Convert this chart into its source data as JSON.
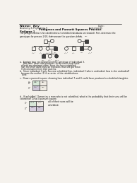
{
  "bg_color": "#f0ece4",
  "paper_color": "#f5f2ed",
  "title": "Pedigrees and Punnett Squares Practice",
  "subtitle_left": "Anatomy & Physiology II",
  "subtitle_right": "Extra Credit",
  "name_label": "Name:  Key",
  "date_label": "Date:",
  "section": "Pedigree 1",
  "intro_text": "The pedigree below is for colorblindness (colorblind individuals are shaded). First, determine the\ngenotypes for persons 1-11, then answer the questions below.",
  "question_a": "a.  Explain how you determined the genotype of individual 3.",
  "answer_a1": "   She didn't have color blindness, so the result must have",
  "answer_a2": "of both one dominant allele. Since she has a colorblind",
  "answer_a3": "Son, the other allele must be recessive, thus she got these",
  "answer_a4": "X chromosomes from their parents.",
  "question_b": "b.  Since individual 3 only has one colorblind Son, individual 3 who is unshaded, how is she unshaded?",
  "answer_b1": "because the mother (1) is a carrier  of the colorblindness",
  "answer_b2": "allele.",
  "question_c": "c.  Draw a punnett square showing how individual 7 and 8 could have produced a colorblind daughter.",
  "question_d": "d.  If individual 11 marries a man who is not colorblind, what is the probability that their sons will be",
  "question_d2": "colorblind? Draw a punnett square.",
  "answer_d": "all of their sons will be\ncolorblind."
}
